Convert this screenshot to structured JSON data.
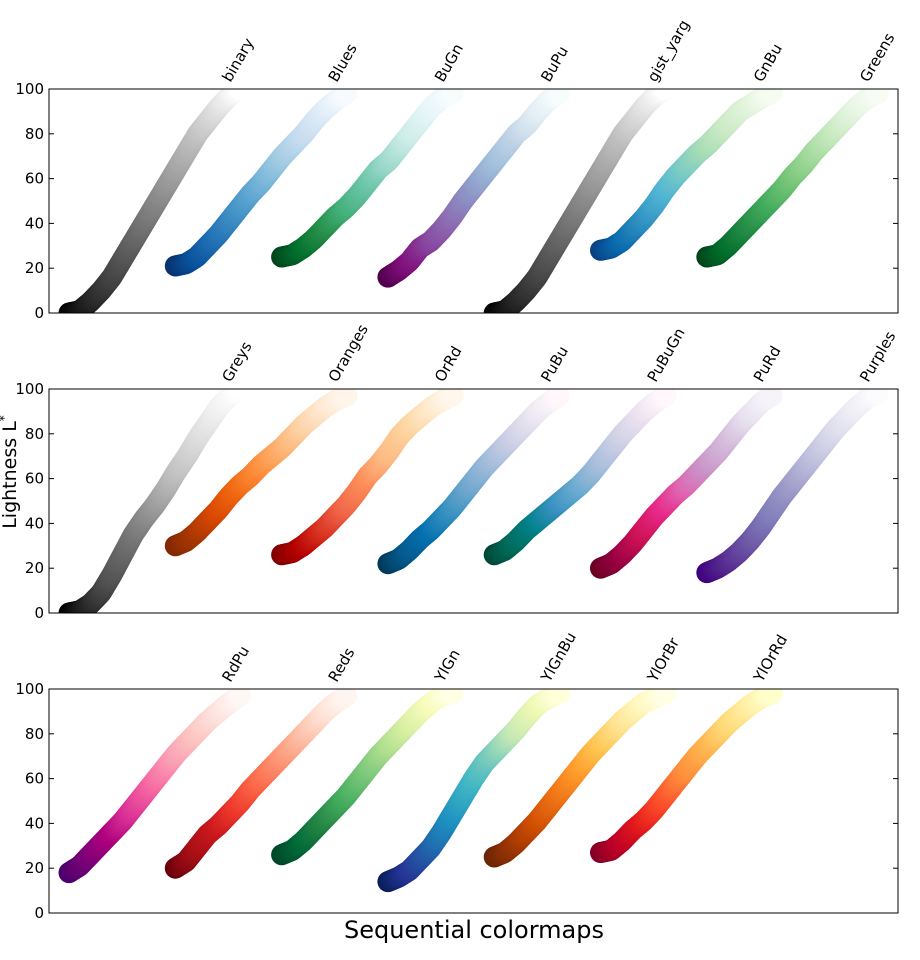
{
  "chart_data": {
    "type": "scatter",
    "title": "",
    "xlabel": "Sequential colormaps",
    "ylabel": "Lightness L",
    "ylabel_superscript": "*",
    "ylim": [
      0,
      100
    ],
    "yticks": [
      "0",
      "20",
      "40",
      "60",
      "80",
      "100"
    ],
    "grid": false,
    "panels": [
      {
        "colormaps": [
          {
            "name": "binary",
            "stops": [
              "#ffffff",
              "#000000"
            ],
            "lightness": [
              100,
              97,
              92,
              86,
              80,
              72,
              64,
              56,
              48,
              40,
              32,
              24,
              16,
              10,
              5,
              1,
              0
            ]
          },
          {
            "name": "Blues",
            "stops": [
              "#f7fbff",
              "#deebf7",
              "#c6dbef",
              "#9ecae1",
              "#6baed6",
              "#4292c6",
              "#2171b5",
              "#08519c",
              "#08306b"
            ],
            "lightness": [
              98,
              95,
              91,
              86,
              80,
              75,
              70,
              64,
              58,
              53,
              47,
              41,
              35,
              30,
              25,
              22,
              21
            ]
          },
          {
            "name": "BuGn",
            "stops": [
              "#f7fcfd",
              "#e5f5f9",
              "#ccece6",
              "#99d8c9",
              "#66c2a4",
              "#41ae76",
              "#238b45",
              "#006d2c",
              "#00441b"
            ],
            "lightness": [
              98,
              96,
              92,
              86,
              80,
              74,
              68,
              64,
              58,
              52,
              47,
              43,
              38,
              33,
              29,
              26,
              25
            ]
          },
          {
            "name": "BuPu",
            "stops": [
              "#f7fcfd",
              "#e0ecf4",
              "#bfd3e6",
              "#9ebcda",
              "#8c96c6",
              "#8c6bb1",
              "#88419d",
              "#810f7c",
              "#4d004b"
            ],
            "lightness": [
              98,
              95,
              90,
              84,
              80,
              74,
              68,
              62,
              56,
              50,
              43,
              37,
              32,
              29,
              23,
              19,
              16
            ]
          },
          {
            "name": "gist_yarg",
            "stops": [
              "#ffffff",
              "#000000"
            ],
            "lightness": [
              100,
              97,
              92,
              86,
              80,
              72,
              64,
              56,
              48,
              40,
              32,
              24,
              16,
              10,
              5,
              1,
              0
            ]
          },
          {
            "name": "GnBu",
            "stops": [
              "#f7fcf0",
              "#e0f3db",
              "#ccebc5",
              "#a8ddb5",
              "#7bccc4",
              "#4eb3d3",
              "#2b8cbe",
              "#0868ac",
              "#084081"
            ],
            "lightness": [
              98,
              96,
              93,
              90,
              85,
              80,
              75,
              71,
              66,
              61,
              55,
              48,
              42,
              37,
              32,
              29,
              28
            ]
          },
          {
            "name": "Greens",
            "stops": [
              "#f7fcf5",
              "#e5f5e0",
              "#c7e9c0",
              "#a1d99b",
              "#74c476",
              "#41ab5d",
              "#238b45",
              "#006d2c",
              "#00441b"
            ],
            "lightness": [
              98,
              96,
              92,
              87,
              82,
              77,
              72,
              66,
              61,
              55,
              50,
              45,
              40,
              35,
              30,
              26,
              25
            ]
          }
        ]
      },
      {
        "colormaps": [
          {
            "name": "Greys",
            "stops": [
              "#ffffff",
              "#f0f0f0",
              "#d9d9d9",
              "#bdbdbd",
              "#969696",
              "#737373",
              "#525252",
              "#252525",
              "#000000"
            ],
            "lightness": [
              100,
              97,
              92,
              85,
              78,
              70,
              63,
              55,
              48,
              42,
              35,
              26,
              17,
              9,
              4,
              1,
              0
            ]
          },
          {
            "name": "Oranges",
            "stops": [
              "#fff5eb",
              "#fee6ce",
              "#fdd0a2",
              "#fdae6b",
              "#fd8d3c",
              "#f16913",
              "#d94801",
              "#a63603",
              "#7f2704"
            ],
            "lightness": [
              97,
              95,
              92,
              88,
              84,
              79,
              74,
              70,
              66,
              61,
              57,
              52,
              46,
              41,
              36,
              32,
              30
            ]
          },
          {
            "name": "OrRd",
            "stops": [
              "#fff7ec",
              "#fee8c8",
              "#fdd49e",
              "#fdbb84",
              "#fc8d59",
              "#ef6548",
              "#d7301f",
              "#b30000",
              "#7f0000"
            ],
            "lightness": [
              97,
              95,
              92,
              88,
              84,
              79,
              72,
              66,
              61,
              54,
              48,
              43,
              38,
              34,
              30,
              27,
              26
            ]
          },
          {
            "name": "PuBu",
            "stops": [
              "#fff7fb",
              "#ece7f2",
              "#d0d1e6",
              "#a6bddb",
              "#74a9cf",
              "#3690c0",
              "#0570b0",
              "#045a8d",
              "#023858"
            ],
            "lightness": [
              97,
              94,
              90,
              85,
              80,
              75,
              70,
              65,
              59,
              53,
              47,
              42,
              37,
              33,
              28,
              24,
              22
            ]
          },
          {
            "name": "PuBuGn",
            "stops": [
              "#fff7fb",
              "#ece2f0",
              "#d0d1e6",
              "#a6bddb",
              "#67a9cf",
              "#3690c0",
              "#02818a",
              "#016c59",
              "#014636"
            ],
            "lightness": [
              97,
              94,
              90,
              85,
              80,
              74,
              68,
              62,
              57,
              53,
              49,
              45,
              41,
              37,
              32,
              28,
              26
            ]
          },
          {
            "name": "PuRd",
            "stops": [
              "#f7f4f9",
              "#e7e1ef",
              "#d4b9da",
              "#c994c7",
              "#df65b0",
              "#e7298a",
              "#ce1256",
              "#980043",
              "#67001f"
            ],
            "lightness": [
              97,
              94,
              89,
              84,
              78,
              72,
              67,
              62,
              57,
              53,
              48,
              43,
              37,
              31,
              26,
              22,
              20
            ]
          },
          {
            "name": "Purples",
            "stops": [
              "#fcfbfd",
              "#efedf5",
              "#dadaeb",
              "#bcbddc",
              "#9e9ac8",
              "#807dba",
              "#6a51a3",
              "#54278f",
              "#3f007d"
            ],
            "lightness": [
              98,
              96,
              92,
              87,
              82,
              76,
              70,
              64,
              58,
              52,
              45,
              38,
              32,
              27,
              23,
              20,
              18
            ]
          }
        ]
      },
      {
        "colormaps": [
          {
            "name": "RdPu",
            "stops": [
              "#fff7f3",
              "#fde0dd",
              "#fcc5c0",
              "#fa9fb5",
              "#f768a1",
              "#dd3497",
              "#ae017e",
              "#7a0177",
              "#49006a"
            ],
            "lightness": [
              97,
              94,
              90,
              86,
              81,
              76,
              71,
              65,
              59,
              53,
              47,
              41,
              36,
              31,
              26,
              21,
              18
            ]
          },
          {
            "name": "Reds",
            "stops": [
              "#fff5f0",
              "#fee0d2",
              "#fcbba1",
              "#fc9272",
              "#fb6a4a",
              "#ef3b2c",
              "#cb181d",
              "#a50f15",
              "#67000d"
            ],
            "lightness": [
              97,
              94,
              90,
              85,
              80,
              75,
              70,
              65,
              60,
              55,
              49,
              44,
              39,
              35,
              29,
              23,
              20
            ]
          },
          {
            "name": "YlGn",
            "stops": [
              "#ffffe5",
              "#f7fcb9",
              "#d9f0a3",
              "#addd8e",
              "#78c679",
              "#41ab5d",
              "#238443",
              "#006837",
              "#004529"
            ],
            "lightness": [
              98,
              97,
              94,
              90,
              85,
              80,
              75,
              70,
              64,
              58,
              52,
              47,
              42,
              37,
              32,
              28,
              26
            ]
          },
          {
            "name": "YlGnBu",
            "stops": [
              "#ffffd9",
              "#edf8b1",
              "#c7e9b4",
              "#7fcdbb",
              "#41b6c4",
              "#1d91c0",
              "#225ea8",
              "#253494",
              "#081d58"
            ],
            "lightness": [
              98,
              96,
              93,
              88,
              82,
              77,
              72,
              67,
              60,
              52,
              44,
              36,
              29,
              24,
              19,
              16,
              14
            ]
          },
          {
            "name": "YlOrBr",
            "stops": [
              "#ffffe5",
              "#fff7bc",
              "#fee391",
              "#fec44f",
              "#fe9929",
              "#ec7014",
              "#cc4c02",
              "#993404",
              "#662506"
            ],
            "lightness": [
              98,
              96,
              94,
              90,
              86,
              81,
              76,
              71,
              65,
              59,
              53,
              47,
              41,
              36,
              31,
              27,
              25
            ]
          },
          {
            "name": "YlOrRd",
            "stops": [
              "#ffffcc",
              "#ffeda0",
              "#fed976",
              "#feb24c",
              "#fd8d3c",
              "#fc4e2a",
              "#e31a1c",
              "#bd0026",
              "#800026"
            ],
            "lightness": [
              98,
              96,
              93,
              89,
              85,
              80,
              75,
              70,
              64,
              58,
              52,
              46,
              41,
              37,
              32,
              28,
              27
            ]
          }
        ]
      }
    ]
  }
}
